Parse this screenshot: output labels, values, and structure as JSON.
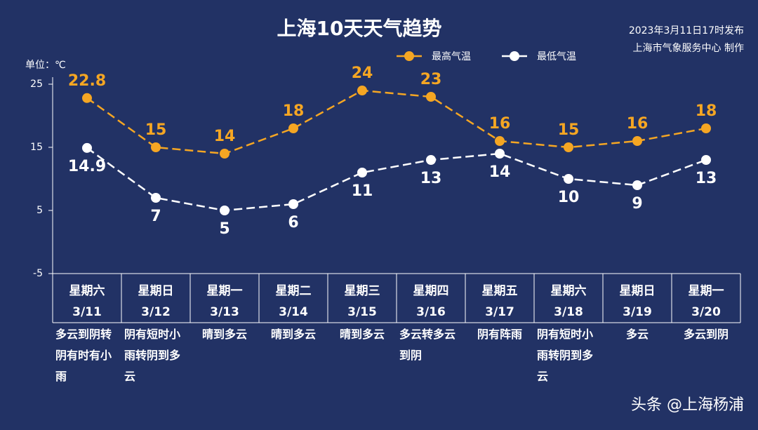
{
  "chart_data": {
    "type": "line",
    "title": "上海10天天气趋势",
    "publish_time": "2023年3月11日17时发布",
    "producer": "上海市气象服务中心 制作",
    "unit_label": "单位：℃",
    "watermark": "头条 @上海杨浦",
    "categories": [
      "3/11",
      "3/12",
      "3/13",
      "3/14",
      "3/15",
      "3/16",
      "3/17",
      "3/18",
      "3/19",
      "3/20"
    ],
    "weekdays": [
      "星期六",
      "星期日",
      "星期一",
      "星期二",
      "星期三",
      "星期四",
      "星期五",
      "星期六",
      "星期日",
      "星期一"
    ],
    "weather": [
      "多云到阴转阴有时有小雨",
      "阴有短时小雨转阴到多云",
      "晴到多云",
      "晴到多云",
      "晴到多云",
      "多云转多云到阴",
      "阴有阵雨",
      "阴有短时小雨转阴到多云",
      "多云",
      "多云到阴"
    ],
    "series": [
      {
        "name": "最高气温",
        "color": "#f5a623",
        "values": [
          22.8,
          15,
          14,
          18,
          24,
          23,
          16,
          15,
          16,
          18
        ]
      },
      {
        "name": "最低气温",
        "color": "#ffffff",
        "values": [
          14.9,
          7,
          5,
          6,
          11,
          13,
          14,
          10,
          9,
          13
        ]
      }
    ],
    "ylim": [
      -5,
      25
    ],
    "yticks": [
      25,
      15,
      5,
      -5
    ],
    "grid": false
  }
}
